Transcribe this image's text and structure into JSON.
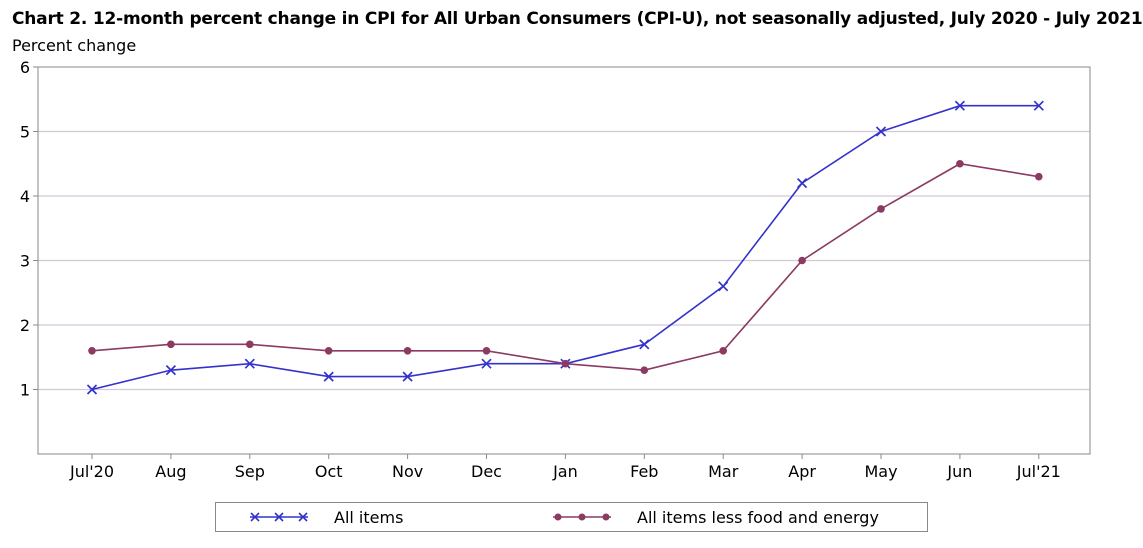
{
  "chart_data": {
    "type": "line",
    "title": "Chart 2. 12-month percent change in CPI for All Urban Consumers (CPI-U), not seasonally adjusted, July 2020 - July 2021",
    "ylabel": "Percent change",
    "xlabel": "",
    "categories": [
      "Jul'20",
      "Aug",
      "Sep",
      "Oct",
      "Nov",
      "Dec",
      "Jan",
      "Feb",
      "Mar",
      "Apr",
      "May",
      "Jun",
      "Jul'21"
    ],
    "ylim": [
      0,
      6
    ],
    "yticks": [
      1,
      2,
      3,
      4,
      5,
      6
    ],
    "grid": true,
    "legend_position": "bottom",
    "series": [
      {
        "name": "All items",
        "color": "#3333cc",
        "marker": "x",
        "values": [
          1.0,
          1.3,
          1.4,
          1.2,
          1.2,
          1.4,
          1.4,
          1.7,
          2.6,
          4.2,
          5.0,
          5.4,
          5.4
        ]
      },
      {
        "name": "All items less food and energy",
        "color": "#8b3a62",
        "marker": "circle",
        "values": [
          1.6,
          1.7,
          1.7,
          1.6,
          1.6,
          1.6,
          1.4,
          1.3,
          1.6,
          3.0,
          3.8,
          4.5,
          4.3
        ]
      }
    ]
  }
}
